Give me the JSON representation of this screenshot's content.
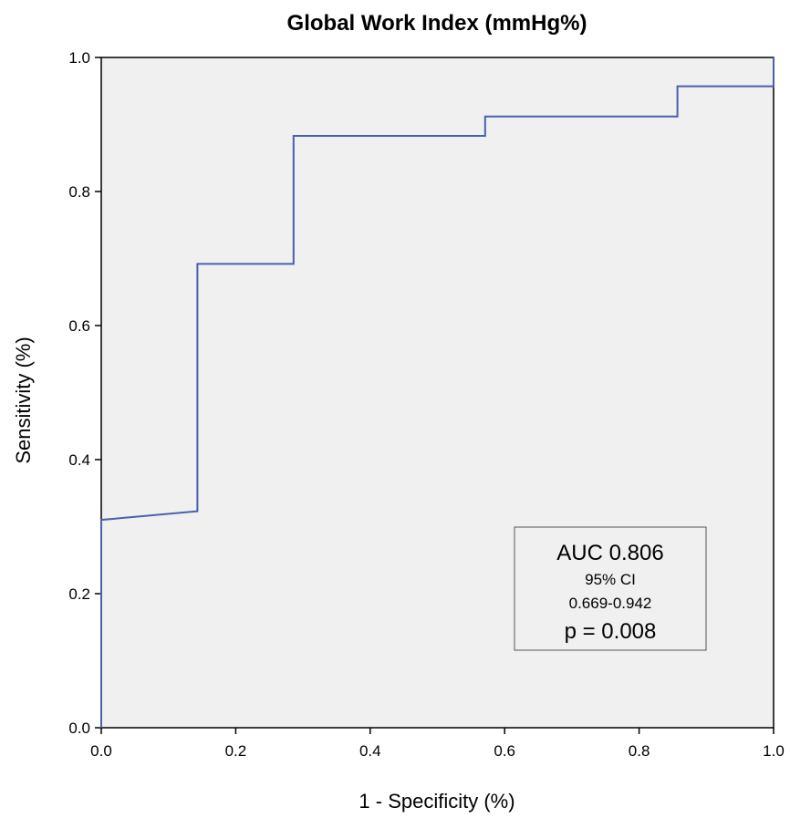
{
  "chart_data": {
    "type": "line",
    "title": "Global Work Index (mmHg%)",
    "xlabel": "1 - Specificity (%)",
    "ylabel": "Sensitivity (%)",
    "xlim": [
      0,
      1
    ],
    "ylim": [
      0,
      1
    ],
    "xticks": [
      "0.0",
      "0.2",
      "0.4",
      "0.6",
      "0.8",
      "1.0"
    ],
    "yticks": [
      "0.0",
      "0.2",
      "0.4",
      "0.6",
      "0.8",
      "1.0"
    ],
    "grid": false,
    "series": [
      {
        "color": "#4a5fae",
        "x": [
          0,
          0,
          0.143,
          0.143,
          0.286,
          0.286,
          0.571,
          0.571,
          0.857,
          0.857,
          1,
          1
        ],
        "y": [
          0,
          0.31,
          0.323,
          0.692,
          0.692,
          0.883,
          0.883,
          0.912,
          0.912,
          0.957,
          0.957,
          1
        ]
      }
    ],
    "annotation": {
      "auc": "AUC 0.806",
      "ci_label": "95% CI",
      "ci_range": "0.669-0.942",
      "p_value": "p = 0.008"
    }
  },
  "colors": {
    "plot_background": "#f0f0f0",
    "frame": "#000000",
    "curve": "#4a5fae",
    "annotation_border": "#555555",
    "annotation_background": "#f0f0f0"
  }
}
